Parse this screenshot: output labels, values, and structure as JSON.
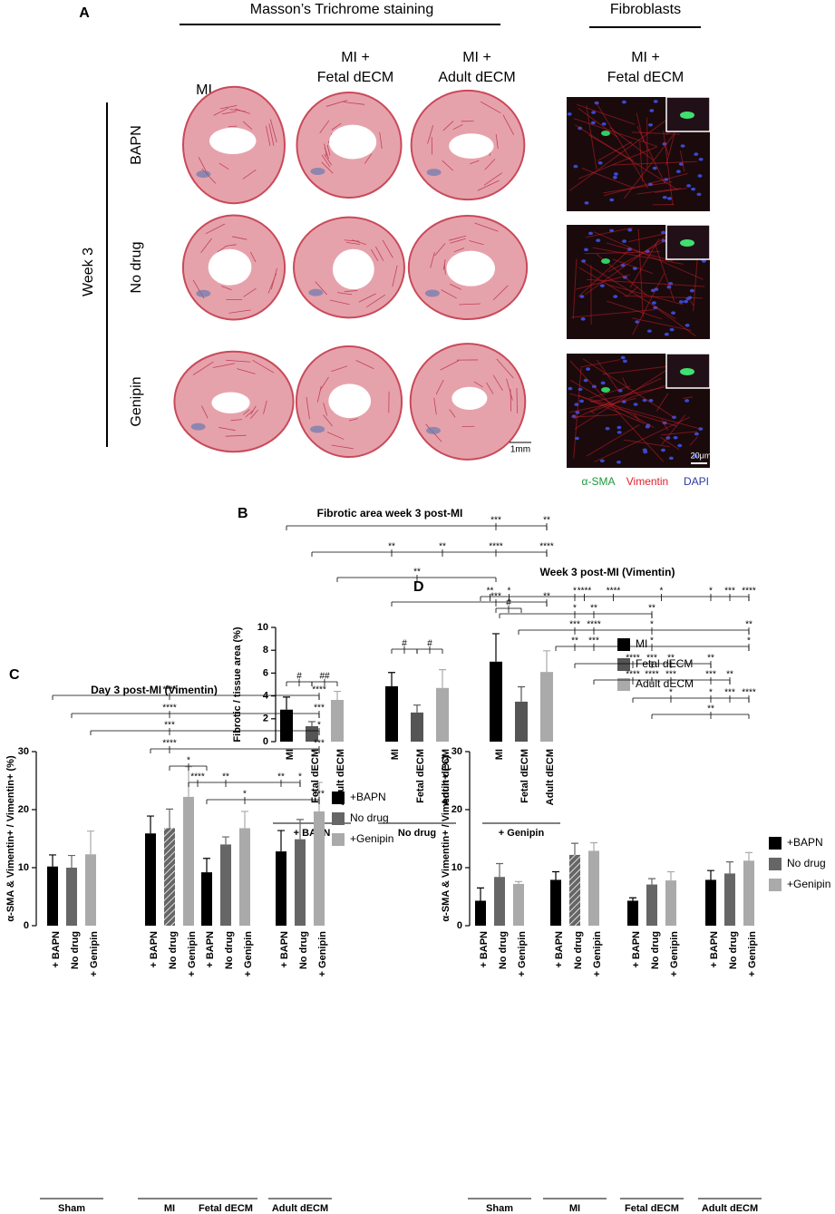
{
  "panel_a": {
    "panel": "A",
    "heading": "Masson’s Trichrome staining",
    "fibro_heading": "Fibroblasts",
    "columns": [
      [
        "MI"
      ],
      [
        "MI +",
        "Fetal dECM"
      ],
      [
        "MI +",
        "Adult dECM"
      ]
    ],
    "fibro_column": [
      "MI +",
      "Fetal dECM"
    ],
    "rows": [
      "BAPN",
      "No drug",
      "Genipin"
    ],
    "week": "Week 3",
    "scale_tissue": "1mm",
    "scale_fibro": "20μm",
    "stains": [
      {
        "name": "α-SMA",
        "color": "#1a9a3a"
      },
      {
        "name": "Vimentin",
        "color": "#e0202a"
      },
      {
        "name": "DAPI",
        "color": "#2a3aa0"
      }
    ]
  },
  "chart_data": [
    {
      "type": "bar",
      "panel": "B",
      "title": "Fibrotic area week 3 post-MI",
      "ylabel": "Fibrotic / tissue area (%)",
      "categories": [
        "+ BAPN",
        "No drug",
        "+ Genipin"
      ],
      "ylim": [
        0,
        10
      ],
      "yticks": [
        0,
        2,
        4,
        6,
        8,
        10
      ],
      "series": [
        {
          "name": "MI",
          "color": "#000000",
          "values": [
            2.8,
            4.85,
            7.0
          ],
          "errors": [
            1.1,
            1.2,
            2.45
          ]
        },
        {
          "name": "Fetal dECM",
          "color": "#555555",
          "values": [
            1.35,
            2.55,
            3.5
          ],
          "errors": [
            0.4,
            0.65,
            1.3
          ]
        },
        {
          "name": "Adult dECM",
          "color": "#aaaaaa",
          "values": [
            3.65,
            4.7,
            6.1
          ],
          "errors": [
            0.75,
            1.6,
            1.85
          ]
        }
      ],
      "annotations": [
        "***",
        "**",
        "**",
        "**",
        "****",
        "****",
        "**",
        "***",
        "**",
        "#",
        "##",
        "#",
        "#",
        "#"
      ]
    },
    {
      "type": "bar",
      "panel": "C",
      "title": "Day 3 post-MI (Vimentin)",
      "ylabel": "α-SMA & Vimentin+ / Vimentin+ (%)",
      "categories": [
        "Sham",
        "MI",
        "Fetal dECM",
        "Adult dECM"
      ],
      "ylim": [
        0,
        30
      ],
      "yticks": [
        0,
        10,
        20,
        30
      ],
      "bar_labels": [
        "+ BAPN",
        "No drug",
        "+ Genipin"
      ],
      "hatch": {
        "series": 1,
        "category": 1
      },
      "series": [
        {
          "name": "+BAPN",
          "color": "#000000",
          "values": [
            10.2,
            15.9,
            9.2,
            12.8
          ],
          "errors": [
            2.0,
            3.0,
            2.4,
            3.6
          ]
        },
        {
          "name": "No drug",
          "color": "#666666",
          "values": [
            10.0,
            16.8,
            14.0,
            14.9
          ],
          "errors": [
            2.1,
            3.3,
            1.3,
            3.4
          ]
        },
        {
          "name": "+Genipin",
          "color": "#aaaaaa",
          "values": [
            12.3,
            22.2,
            16.8,
            19.7
          ],
          "errors": [
            4.0,
            5.2,
            2.9,
            5.0
          ]
        }
      ],
      "annotations": [
        "****",
        "****",
        "****",
        "***",
        "***",
        "*",
        "****",
        "***",
        "*",
        "****",
        "**",
        "**",
        "*",
        "*",
        "***"
      ]
    },
    {
      "type": "bar",
      "panel": "D",
      "title": "Week 3 post-MI (Vimentin)",
      "ylabel": "α-SMA & Vimentin+ / Vimentin+ (%)",
      "categories": [
        "Sham",
        "MI",
        "Fetal dECM",
        "Adult dECM"
      ],
      "ylim": [
        0,
        30
      ],
      "yticks": [
        0,
        10,
        20,
        30
      ],
      "bar_labels": [
        "+ BAPN",
        "No drug",
        "+ Genipin"
      ],
      "hatch": {
        "series": 1,
        "category": 1
      },
      "series": [
        {
          "name": "+BAPN",
          "color": "#000000",
          "values": [
            4.3,
            7.9,
            4.3,
            7.9
          ],
          "errors": [
            2.2,
            1.4,
            0.5,
            1.6
          ]
        },
        {
          "name": "No drug",
          "color": "#666666",
          "values": [
            8.4,
            12.2,
            7.1,
            9.0
          ],
          "errors": [
            2.3,
            2.0,
            1.0,
            2.0
          ]
        },
        {
          "name": "+Genipin",
          "color": "#aaaaaa",
          "values": [
            7.2,
            12.9,
            7.8,
            11.2
          ],
          "errors": [
            0.4,
            1.4,
            1.5,
            1.4
          ]
        }
      ],
      "annotations": [
        "**",
        "*",
        "*",
        "****",
        "****",
        "*",
        "*",
        "***",
        "****",
        "*",
        "**",
        "**",
        "***",
        "****",
        "*",
        "**",
        "**",
        "***",
        "*",
        "*",
        "****",
        "***",
        "**",
        "**",
        "****",
        "****",
        "***",
        "***",
        "**",
        "*",
        "*",
        "***",
        "****",
        "**"
      ]
    }
  ]
}
